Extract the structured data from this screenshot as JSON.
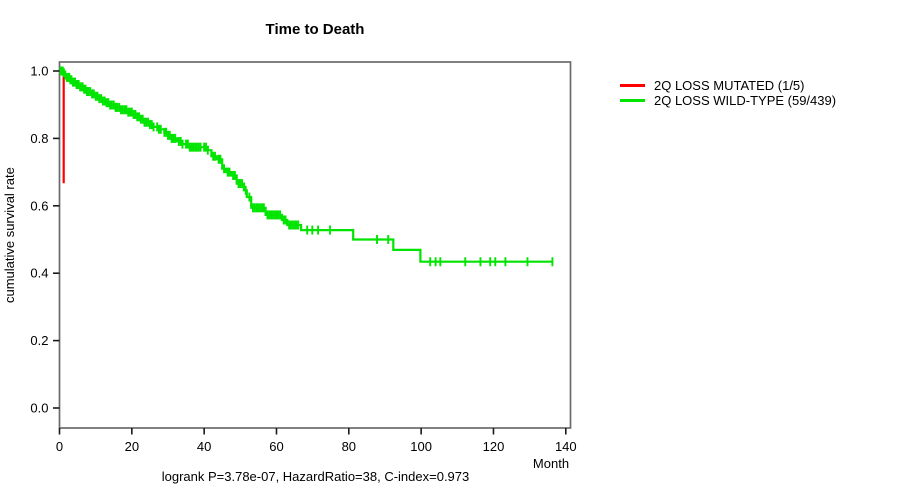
{
  "page": {
    "background": "#ffffff"
  },
  "chart_data": {
    "type": "line",
    "subtype": "kaplan-meier-step-function",
    "title": "Time to Death",
    "xlabel": "Month",
    "ylabel": "cumulative survival rate",
    "annotation": "logrank P=3.78e-07, HazardRatio=38, C-index=0.973",
    "xlim": [
      0,
      140
    ],
    "ylim": [
      0.0,
      1.0
    ],
    "grid": false,
    "legend_position": "right-outside",
    "x_ticks": [
      {
        "value": 0,
        "label": "0"
      },
      {
        "value": 20,
        "label": "20"
      },
      {
        "value": 40,
        "label": "40"
      },
      {
        "value": 60,
        "label": "60"
      },
      {
        "value": 80,
        "label": "80"
      },
      {
        "value": 100,
        "label": "100"
      },
      {
        "value": 120,
        "label": "120"
      },
      {
        "value": 140,
        "label": "140"
      }
    ],
    "y_ticks": [
      {
        "value": 0.0,
        "label": "0.0"
      },
      {
        "value": 0.2,
        "label": "0.2"
      },
      {
        "value": 0.4,
        "label": "0.4"
      },
      {
        "value": 0.6,
        "label": "0.6"
      },
      {
        "value": 0.8,
        "label": "0.8"
      },
      {
        "value": 1.0,
        "label": "1.0"
      }
    ],
    "series": [
      {
        "name": "2Q LOSS MUTATED (1/5)",
        "color": "#ff0000",
        "steps": [
          [
            0.85,
            1.0
          ],
          [
            1.15,
            0.667
          ]
        ],
        "censors": []
      },
      {
        "name": "2Q LOSS WILD-TYPE (59/439)",
        "color": "#00e400",
        "steps": [
          [
            0,
            1.0
          ],
          [
            1,
            0.995
          ],
          [
            1.5,
            0.988
          ],
          [
            2,
            0.981
          ],
          [
            3,
            0.974
          ],
          [
            3.5,
            0.967
          ],
          [
            4.5,
            0.96
          ],
          [
            5.5,
            0.953
          ],
          [
            6.5,
            0.946
          ],
          [
            7.5,
            0.939
          ],
          [
            9,
            0.932
          ],
          [
            10,
            0.925
          ],
          [
            11,
            0.918
          ],
          [
            12,
            0.911
          ],
          [
            13,
            0.906
          ],
          [
            14,
            0.899
          ],
          [
            15.5,
            0.892
          ],
          [
            17,
            0.885
          ],
          [
            19,
            0.878
          ],
          [
            20.5,
            0.871
          ],
          [
            21.5,
            0.864
          ],
          [
            22.5,
            0.857
          ],
          [
            23.5,
            0.848
          ],
          [
            25,
            0.841
          ],
          [
            26,
            0.834
          ],
          [
            27.5,
            0.827
          ],
          [
            29,
            0.818
          ],
          [
            30,
            0.809
          ],
          [
            31,
            0.8
          ],
          [
            32.5,
            0.791
          ],
          [
            34,
            0.783
          ],
          [
            36,
            0.774
          ],
          [
            41,
            0.765
          ],
          [
            42,
            0.747
          ],
          [
            43.5,
            0.738
          ],
          [
            45,
            0.71
          ],
          [
            46,
            0.7
          ],
          [
            47.5,
            0.69
          ],
          [
            49,
            0.666
          ],
          [
            51,
            0.646
          ],
          [
            51.8,
            0.626
          ],
          [
            53,
            0.594
          ],
          [
            57,
            0.573
          ],
          [
            61.5,
            0.558
          ],
          [
            63,
            0.543
          ],
          [
            66.8,
            0.528
          ],
          [
            81.2,
            0.5
          ],
          [
            92.3,
            0.469
          ],
          [
            99.8,
            0.434
          ],
          [
            136.3,
            0.434
          ]
        ],
        "censors": [
          0.3,
          0.6,
          0.9,
          1.2,
          1.6,
          2.0,
          2.3,
          2.7,
          3.0,
          3.3,
          3.7,
          4.0,
          4.3,
          4.7,
          5.0,
          5.3,
          5.7,
          6.0,
          6.4,
          6.8,
          7.2,
          7.6,
          8.0,
          8.5,
          9.0,
          9.5,
          10.0,
          10.5,
          11.0,
          11.5,
          12.0,
          12.5,
          13.0,
          13.5,
          14.0,
          14.5,
          15.0,
          15.5,
          16.0,
          16.5,
          17.0,
          17.5,
          18.0,
          18.5,
          19.0,
          19.5,
          20.0,
          20.5,
          21.0,
          21.5,
          22.0,
          22.5,
          23.0,
          23.5,
          24.0,
          24.5,
          25.0,
          25.5,
          26.0,
          27.0,
          27.5,
          28.0,
          29.0,
          29.5,
          30.0,
          30.5,
          31.0,
          31.5,
          32.0,
          33.0,
          33.5,
          34.0,
          35.0,
          35.5,
          36.0,
          36.5,
          37.0,
          37.5,
          38.0,
          38.5,
          39.0,
          40.0,
          40.5,
          41.0,
          42.5,
          43.0,
          44.0,
          44.5,
          45.5,
          46.5,
          47.0,
          48.0,
          48.5,
          49.5,
          50.0,
          50.5,
          51.5,
          52.5,
          53.5,
          54.0,
          54.5,
          55.0,
          55.5,
          56.0,
          56.5,
          57.5,
          58.0,
          58.5,
          59.0,
          59.5,
          60.0,
          60.5,
          61.0,
          62.0,
          62.5,
          63.5,
          64.0,
          64.5,
          65.0,
          65.5,
          66.0,
          68.5,
          69.9,
          71.5,
          74.8,
          87.8,
          90.9,
          102.5,
          104.0,
          105.3,
          112.2,
          116.4,
          119.1,
          120.5,
          123.3,
          129.4,
          136.3
        ]
      }
    ]
  }
}
